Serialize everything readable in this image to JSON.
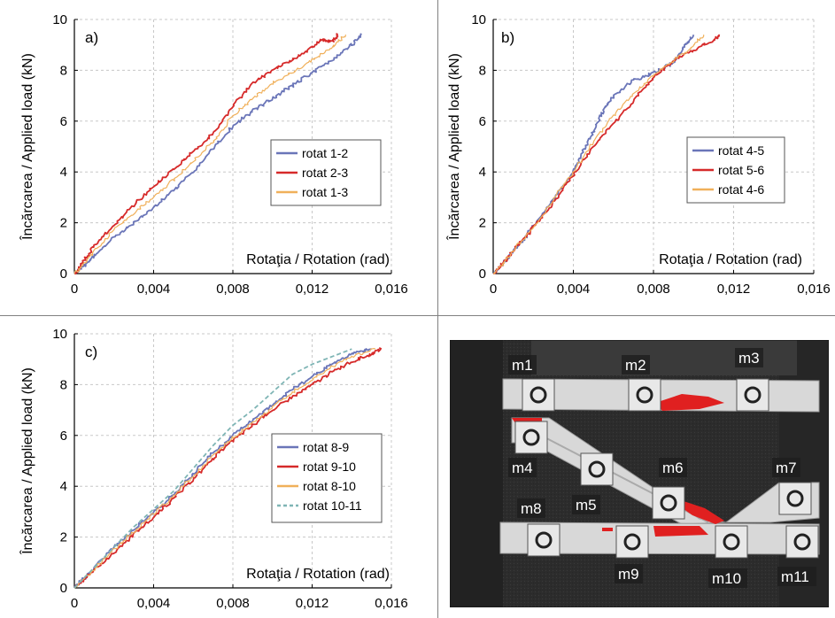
{
  "chart_data": [
    {
      "type": "line",
      "panel_label": "a)",
      "xlabel": "Rotaţia / Rotation (rad)",
      "ylabel": "Încărcarea / Applied load (kN)",
      "xlim": [
        0,
        0.016
      ],
      "ylim": [
        0,
        10
      ],
      "x_ticks": [
        "0",
        "0,004",
        "0,008",
        "0,012",
        "0,016"
      ],
      "y_ticks": [
        "0",
        "2",
        "4",
        "6",
        "8",
        "10"
      ],
      "grid": "dashed",
      "legend_position": "center-right",
      "series": [
        {
          "name": "rotat 1-2",
          "color": "#6a75b8",
          "style": "solid",
          "x": [
            0,
            0.0005,
            0.001,
            0.002,
            0.003,
            0.004,
            0.005,
            0.006,
            0.007,
            0.008,
            0.009,
            0.01,
            0.011,
            0.012,
            0.013,
            0.014,
            0.0145
          ],
          "y": [
            0,
            0.3,
            0.7,
            1.4,
            2.0,
            2.6,
            3.3,
            4.0,
            4.9,
            5.8,
            6.4,
            6.9,
            7.4,
            7.9,
            8.4,
            9.0,
            9.4
          ]
        },
        {
          "name": "rotat 2-3",
          "color": "#d62a2a",
          "style": "solid",
          "x": [
            0,
            0.0005,
            0.001,
            0.002,
            0.003,
            0.004,
            0.005,
            0.006,
            0.007,
            0.008,
            0.009,
            0.01,
            0.011,
            0.012,
            0.0125,
            0.013,
            0.0133
          ],
          "y": [
            0,
            0.5,
            1.1,
            1.9,
            2.7,
            3.4,
            4.1,
            4.8,
            5.5,
            6.6,
            7.5,
            8.0,
            8.4,
            8.9,
            9.2,
            9.1,
            9.4
          ]
        },
        {
          "name": "rotat 1-3",
          "color": "#f0b05a",
          "style": "solid",
          "x": [
            0,
            0.0005,
            0.001,
            0.002,
            0.003,
            0.004,
            0.005,
            0.006,
            0.007,
            0.008,
            0.009,
            0.01,
            0.011,
            0.012,
            0.013,
            0.0137
          ],
          "y": [
            0,
            0.4,
            0.9,
            1.7,
            2.4,
            3.0,
            3.7,
            4.4,
            5.2,
            6.2,
            6.9,
            7.5,
            7.9,
            8.4,
            8.9,
            9.4
          ]
        }
      ]
    },
    {
      "type": "line",
      "panel_label": "b)",
      "xlabel": "Rotaţia / Rotation (rad)",
      "ylabel": "Încărcarea / Applied load (kN)",
      "xlim": [
        0,
        0.016
      ],
      "ylim": [
        0,
        10
      ],
      "x_ticks": [
        "0",
        "0,004",
        "0,008",
        "0,012",
        "0,016"
      ],
      "y_ticks": [
        "0",
        "2",
        "4",
        "6",
        "8",
        "10"
      ],
      "grid": "dashed",
      "legend_position": "center-right",
      "series": [
        {
          "name": "rotat 4-5",
          "color": "#6a75b8",
          "style": "solid",
          "x": [
            0,
            0.0005,
            0.001,
            0.0015,
            0.002,
            0.003,
            0.004,
            0.0045,
            0.005,
            0.0055,
            0.006,
            0.007,
            0.008,
            0.009,
            0.0095,
            0.01
          ],
          "y": [
            0,
            0.4,
            0.9,
            1.3,
            1.9,
            2.9,
            4.0,
            4.8,
            5.6,
            6.4,
            7.0,
            7.6,
            7.9,
            8.3,
            8.9,
            9.4
          ]
        },
        {
          "name": "rotat 5-6",
          "color": "#d62a2a",
          "style": "solid",
          "x": [
            0,
            0.0005,
            0.001,
            0.002,
            0.003,
            0.004,
            0.005,
            0.006,
            0.007,
            0.008,
            0.009,
            0.01,
            0.011,
            0.0113
          ],
          "y": [
            0,
            0.4,
            0.9,
            1.8,
            2.8,
            3.9,
            5.0,
            5.9,
            6.8,
            7.7,
            8.4,
            8.8,
            9.2,
            9.4
          ]
        },
        {
          "name": "rotat 4-6",
          "color": "#f0b05a",
          "style": "solid",
          "x": [
            0,
            0.0005,
            0.001,
            0.002,
            0.003,
            0.004,
            0.005,
            0.006,
            0.007,
            0.008,
            0.009,
            0.0098,
            0.0105
          ],
          "y": [
            0,
            0.4,
            0.9,
            1.8,
            2.9,
            4.0,
            5.2,
            6.2,
            7.1,
            7.8,
            8.4,
            8.8,
            9.4
          ]
        }
      ]
    },
    {
      "type": "line",
      "panel_label": "c)",
      "xlabel": "Rotaţia / Rotation (rad)",
      "ylabel": "Încărcarea / Applied load (kN)",
      "xlim": [
        0,
        0.016
      ],
      "ylim": [
        0,
        10
      ],
      "x_ticks": [
        "0",
        "0,004",
        "0,008",
        "0,012",
        "0,016"
      ],
      "y_ticks": [
        "0",
        "2",
        "4",
        "6",
        "8",
        "10"
      ],
      "grid": "dashed",
      "legend_position": "center-right",
      "series": [
        {
          "name": "rotat 8-9",
          "color": "#6a75b8",
          "style": "solid",
          "x": [
            0,
            0.001,
            0.002,
            0.003,
            0.004,
            0.005,
            0.006,
            0.007,
            0.008,
            0.009,
            0.01,
            0.011,
            0.012,
            0.013,
            0.014,
            0.015
          ],
          "y": [
            0,
            0.8,
            1.6,
            2.3,
            3.0,
            3.7,
            4.5,
            5.3,
            6.0,
            6.6,
            7.2,
            7.8,
            8.3,
            8.8,
            9.2,
            9.4
          ]
        },
        {
          "name": "rotat 9-10",
          "color": "#d62a2a",
          "style": "solid",
          "x": [
            0,
            0.001,
            0.002,
            0.003,
            0.004,
            0.005,
            0.006,
            0.007,
            0.008,
            0.009,
            0.01,
            0.011,
            0.012,
            0.013,
            0.014,
            0.015,
            0.0155
          ],
          "y": [
            0,
            0.7,
            1.4,
            2.1,
            2.8,
            3.5,
            4.3,
            5.1,
            5.8,
            6.4,
            7.0,
            7.5,
            8.0,
            8.5,
            8.9,
            9.2,
            9.4
          ]
        },
        {
          "name": "rotat 8-10",
          "color": "#f0b05a",
          "style": "solid",
          "x": [
            0,
            0.001,
            0.002,
            0.003,
            0.004,
            0.005,
            0.006,
            0.007,
            0.008,
            0.009,
            0.01,
            0.011,
            0.012,
            0.013,
            0.014,
            0.0152
          ],
          "y": [
            0,
            0.75,
            1.5,
            2.2,
            2.9,
            3.6,
            4.4,
            5.2,
            5.9,
            6.5,
            7.1,
            7.7,
            8.2,
            8.7,
            9.1,
            9.4
          ]
        },
        {
          "name": "rotat 10-11",
          "color": "#7fb5b5",
          "style": "dashed",
          "x": [
            0,
            0.001,
            0.002,
            0.003,
            0.004,
            0.005,
            0.006,
            0.007,
            0.008,
            0.009,
            0.01,
            0.011,
            0.012,
            0.013,
            0.014
          ],
          "y": [
            0,
            0.8,
            1.6,
            2.4,
            3.1,
            3.8,
            4.7,
            5.6,
            6.4,
            7.0,
            7.7,
            8.4,
            8.8,
            9.1,
            9.4
          ]
        }
      ]
    }
  ],
  "photo": {
    "markers": [
      "m1",
      "m2",
      "m3",
      "m4",
      "m5",
      "m6",
      "m7",
      "m8",
      "m9",
      "m10",
      "m11"
    ],
    "background_color": "#2e2e2e",
    "beam_color": "#d8d8d8",
    "strain_color": "#e02020"
  }
}
